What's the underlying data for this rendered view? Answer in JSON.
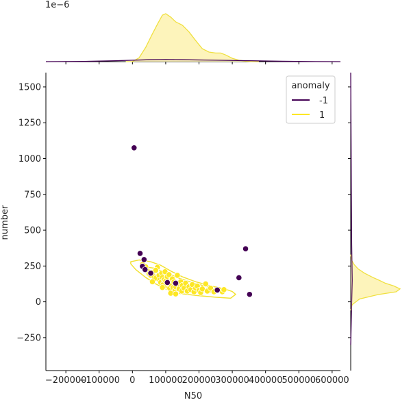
{
  "chart_data": {
    "type": "scatter",
    "title": "",
    "xlabel": "N50",
    "ylabel": "number",
    "xlim": [
      -260000,
      625000
    ],
    "ylim": [
      -480,
      1600
    ],
    "x_ticks": [
      -200000,
      -100000,
      0,
      100000,
      200000,
      300000,
      400000,
      500000,
      600000
    ],
    "x_tick_labels": [
      "−200000",
      "−100000",
      "0",
      "100000",
      "200000",
      "300000",
      "400000",
      "500000",
      "600000"
    ],
    "y_ticks": [
      -250,
      0,
      250,
      500,
      750,
      1000,
      1250,
      1500
    ],
    "y_tick_labels": [
      "−250",
      "0",
      "250",
      "500",
      "750",
      "1000",
      "1250",
      "1500"
    ],
    "top_marginal_offset_label": "1e−6",
    "grid": false,
    "legend": {
      "title": "anomaly",
      "placement": "top-right",
      "entries": [
        {
          "label": "-1",
          "color": "#440154"
        },
        {
          "label": "1",
          "color": "#fde725"
        }
      ]
    },
    "colors": {
      "anomaly": "#440154",
      "normal": "#fde725",
      "normal_edge": "#ffffff",
      "contour": "#f2e132",
      "kde_fill": "#fdf3b4",
      "kde_line": "#f0e040"
    },
    "series": [
      {
        "name": "-1",
        "color": "#440154",
        "points": [
          [
            5000,
            1075
          ],
          [
            23000,
            338
          ],
          [
            35000,
            295
          ],
          [
            30000,
            248
          ],
          [
            38000,
            225
          ],
          [
            55000,
            200
          ],
          [
            105000,
            135
          ],
          [
            130000,
            130
          ],
          [
            255000,
            82
          ],
          [
            320000,
            168
          ],
          [
            340000,
            370
          ],
          [
            352000,
            52
          ]
        ]
      },
      {
        "name": "1",
        "color": "#fde725",
        "points": [
          [
            30000,
            260
          ],
          [
            40000,
            245
          ],
          [
            45000,
            215
          ],
          [
            50000,
            195
          ],
          [
            55000,
            185
          ],
          [
            60000,
            205
          ],
          [
            65000,
            175
          ],
          [
            70000,
            165
          ],
          [
            75000,
            240
          ],
          [
            80000,
            185
          ],
          [
            82000,
            150
          ],
          [
            85000,
            135
          ],
          [
            88000,
            200
          ],
          [
            90000,
            170
          ],
          [
            92000,
            120
          ],
          [
            95000,
            155
          ],
          [
            98000,
            210
          ],
          [
            100000,
            145
          ],
          [
            102000,
            110
          ],
          [
            105000,
            175
          ],
          [
            108000,
            125
          ],
          [
            110000,
            190
          ],
          [
            112000,
            95
          ],
          [
            115000,
            150
          ],
          [
            118000,
            115
          ],
          [
            120000,
            160
          ],
          [
            122000,
            100
          ],
          [
            125000,
            140
          ],
          [
            128000,
            80
          ],
          [
            130000,
            105
          ],
          [
            135000,
            185
          ],
          [
            138000,
            125
          ],
          [
            140000,
            90
          ],
          [
            145000,
            140
          ],
          [
            148000,
            75
          ],
          [
            150000,
            115
          ],
          [
            155000,
            95
          ],
          [
            160000,
            130
          ],
          [
            165000,
            75
          ],
          [
            170000,
            105
          ],
          [
            175000,
            85
          ],
          [
            180000,
            120
          ],
          [
            185000,
            70
          ],
          [
            190000,
            95
          ],
          [
            195000,
            110
          ],
          [
            200000,
            80
          ],
          [
            205000,
            65
          ],
          [
            210000,
            90
          ],
          [
            220000,
            125
          ],
          [
            225000,
            75
          ],
          [
            235000,
            95
          ],
          [
            245000,
            70
          ],
          [
            260000,
            85
          ],
          [
            270000,
            70
          ],
          [
            275000,
            85
          ],
          [
            90000,
            100
          ],
          [
            70000,
            220
          ],
          [
            60000,
            140
          ],
          [
            115000,
            60
          ],
          [
            130000,
            55
          ]
        ]
      }
    ],
    "contours": {
      "series": "1",
      "outer": [
        [
          -5000,
          280
        ],
        [
          20000,
          292
        ],
        [
          55000,
          280
        ],
        [
          85000,
          255
        ],
        [
          115000,
          215
        ],
        [
          150000,
          175
        ],
        [
          190000,
          140
        ],
        [
          240000,
          108
        ],
        [
          275000,
          92
        ],
        [
          300000,
          72
        ],
        [
          310000,
          52
        ],
        [
          295000,
          25
        ],
        [
          250000,
          32
        ],
        [
          190000,
          45
        ],
        [
          135000,
          60
        ],
        [
          100000,
          90
        ],
        [
          70000,
          125
        ],
        [
          40000,
          170
        ],
        [
          10000,
          225
        ],
        [
          -5000,
          265
        ]
      ],
      "inner": [
        [
          35000,
          245
        ],
        [
          65000,
          235
        ],
        [
          100000,
          205
        ],
        [
          140000,
          165
        ],
        [
          185000,
          130
        ],
        [
          225000,
          105
        ],
        [
          255000,
          85
        ],
        [
          245000,
          68
        ],
        [
          205000,
          75
        ],
        [
          160000,
          90
        ],
        [
          120000,
          110
        ],
        [
          85000,
          140
        ],
        [
          55000,
          185
        ],
        [
          35000,
          225
        ]
      ]
    },
    "marginal_x_kde": {
      "series_1": [
        [
          -20000,
          0.0
        ],
        [
          0,
          0.0
        ],
        [
          20000,
          0.08
        ],
        [
          40000,
          0.3
        ],
        [
          60000,
          0.58
        ],
        [
          75000,
          0.78
        ],
        [
          90000,
          0.97
        ],
        [
          100000,
          1.0
        ],
        [
          115000,
          0.93
        ],
        [
          130000,
          0.83
        ],
        [
          150000,
          0.76
        ],
        [
          170000,
          0.62
        ],
        [
          190000,
          0.44
        ],
        [
          210000,
          0.27
        ],
        [
          230000,
          0.2
        ],
        [
          250000,
          0.18
        ],
        [
          265000,
          0.18
        ],
        [
          280000,
          0.14
        ],
        [
          300000,
          0.07
        ],
        [
          320000,
          0.03
        ],
        [
          340000,
          0.01
        ],
        [
          360000,
          0.0
        ],
        [
          380000,
          0.0
        ]
      ],
      "series_-1": [
        [
          -260000,
          0.0
        ],
        [
          -150000,
          0.005
        ],
        [
          -50000,
          0.02
        ],
        [
          50000,
          0.04
        ],
        [
          100000,
          0.045
        ],
        [
          150000,
          0.04
        ],
        [
          250000,
          0.03
        ],
        [
          350000,
          0.02
        ],
        [
          450000,
          0.008
        ],
        [
          550000,
          0.002
        ],
        [
          625000,
          0.0
        ]
      ]
    },
    "marginal_y_kde": {
      "series_1": [
        [
          -60,
          0.0
        ],
        [
          -20,
          0.03
        ],
        [
          20,
          0.18
        ],
        [
          50,
          0.55
        ],
        [
          70,
          0.92
        ],
        [
          90,
          1.0
        ],
        [
          110,
          0.88
        ],
        [
          130,
          0.7
        ],
        [
          150,
          0.58
        ],
        [
          170,
          0.45
        ],
        [
          200,
          0.28
        ],
        [
          230,
          0.15
        ],
        [
          260,
          0.07
        ],
        [
          290,
          0.02
        ],
        [
          330,
          0.0
        ]
      ],
      "series_-1": [
        [
          -300,
          0.0
        ],
        [
          0,
          0.02
        ],
        [
          150,
          0.03
        ],
        [
          400,
          0.02
        ],
        [
          800,
          0.012
        ],
        [
          1100,
          0.008
        ],
        [
          1400,
          0.003
        ],
        [
          1600,
          0.0
        ]
      ]
    }
  }
}
